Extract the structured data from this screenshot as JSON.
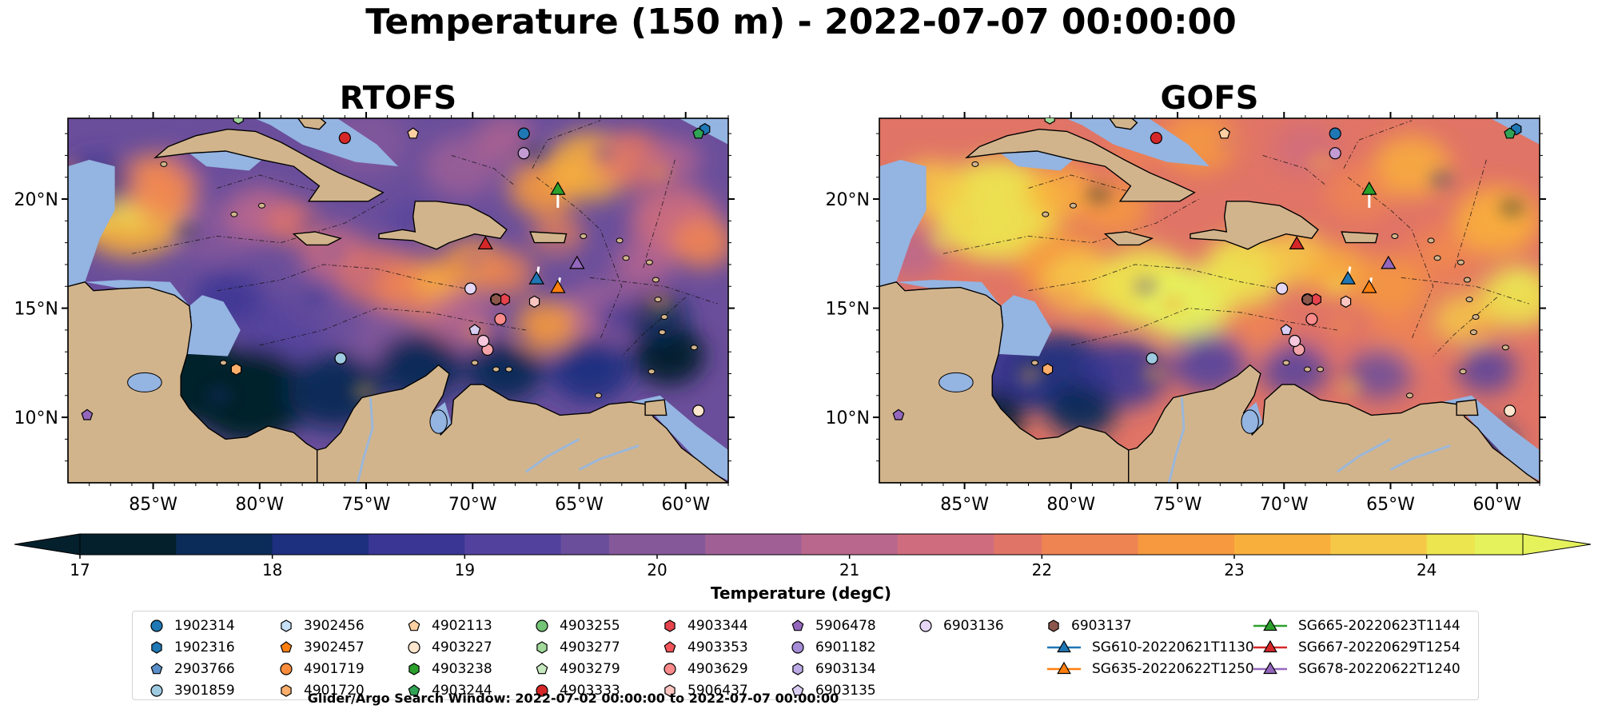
{
  "figure": {
    "title": "Temperature (150 m) - 2022-07-07 00:00:00",
    "footer": "Glider/Argo Search Window: 2022-07-02 00:00:00 to 2022-07-07 00:00:00"
  },
  "maps": [
    {
      "title": "RTOFS",
      "field_character": "mostly 19-23 degC, warm pool off Honduras, cold southern band"
    },
    {
      "title": "GOFS",
      "field_character": "warmer, 22-24+ degC across central basin, cold southern band"
    }
  ],
  "axes": {
    "x_tick_labels": [
      "85°W",
      "80°W",
      "75°W",
      "70°W",
      "65°W",
      "60°W"
    ],
    "x_ticks_lon": [
      -85,
      -80,
      -75,
      -70,
      -65,
      -60
    ],
    "y_tick_labels": [
      "10°N",
      "15°N",
      "20°N"
    ],
    "y_ticks_lat": [
      10,
      15,
      20
    ],
    "lon_range": [
      -89,
      -58
    ],
    "lat_range": [
      7,
      23.7
    ]
  },
  "colorbar": {
    "label": "Temperature (degC)",
    "tick_labels": [
      "17",
      "18",
      "19",
      "20",
      "21",
      "22",
      "23",
      "24"
    ],
    "range": [
      17,
      24.5
    ],
    "step": 0.25,
    "extend": "both",
    "colormap": "thermal",
    "colors": [
      "#04202c",
      "#0b2c59",
      "#1d2f7f",
      "#3a3693",
      "#53429d",
      "#6a4e9b",
      "#85589a",
      "#a06096",
      "#b9678d",
      "#cf6d7e",
      "#e07466",
      "#ef8453",
      "#f6993f",
      "#f9af3c",
      "#f5c848",
      "#ede550",
      "#e6f25c"
    ]
  },
  "map_colors": {
    "land": "#d2b48c",
    "shelf_water": "#94b4e1",
    "coastline": "#000000"
  },
  "floats": [
    {
      "id": "1902314",
      "marker": "circle",
      "color": "#1f77b4",
      "lon": -67.6,
      "lat": 23.0
    },
    {
      "id": "1902316",
      "marker": "hexagon",
      "color": "#1f77b4",
      "lon": -59.1,
      "lat": 23.2
    },
    {
      "id": "2903766",
      "marker": "pentagon",
      "color": "#5a8fc9",
      "lon": -98,
      "lat": -99
    },
    {
      "id": "3901859",
      "marker": "circle",
      "color": "#9ecae1",
      "lon": -76.2,
      "lat": 12.7
    },
    {
      "id": "3902456",
      "marker": "hexagon",
      "color": "#c6e0f7",
      "lon": -98,
      "lat": -99
    },
    {
      "id": "3902457",
      "marker": "pentagon",
      "color": "#ff7f0e",
      "lon": -98,
      "lat": -99
    },
    {
      "id": "4901719",
      "marker": "circle",
      "color": "#fd8d3c",
      "lon": -68.9,
      "lat": 15.4
    },
    {
      "id": "4901720",
      "marker": "hexagon",
      "color": "#fdae6b",
      "lon": -81.1,
      "lat": 12.2
    },
    {
      "id": "4902113",
      "marker": "pentagon",
      "color": "#fdd0a2",
      "lon": -72.8,
      "lat": 23.0
    },
    {
      "id": "4903227",
      "marker": "circle",
      "color": "#fee6ce",
      "lon": -59.4,
      "lat": 10.3
    },
    {
      "id": "4903238",
      "marker": "hexagon",
      "color": "#2ca02c",
      "lon": -98,
      "lat": -99
    },
    {
      "id": "4903244",
      "marker": "pentagon",
      "color": "#31a354",
      "lon": -59.4,
      "lat": 23.0
    },
    {
      "id": "4903255",
      "marker": "circle",
      "color": "#74c476",
      "lon": -98,
      "lat": -99
    },
    {
      "id": "4903277",
      "marker": "hexagon",
      "color": "#a1d99b",
      "lon": -81.0,
      "lat": 23.7
    },
    {
      "id": "4903279",
      "marker": "pentagon",
      "color": "#c7e9c0",
      "lon": -98,
      "lat": -99
    },
    {
      "id": "4903333",
      "marker": "circle",
      "color": "#d62728",
      "lon": -76.0,
      "lat": 22.8
    },
    {
      "id": "4903344",
      "marker": "hexagon",
      "color": "#e6434d",
      "lon": -68.5,
      "lat": 15.4
    },
    {
      "id": "4903353",
      "marker": "pentagon",
      "color": "#f25459",
      "lon": -98,
      "lat": -99
    },
    {
      "id": "4903629",
      "marker": "circle",
      "color": "#fb8a8a",
      "lon": -68.7,
      "lat": 14.5
    },
    {
      "id": "5906437",
      "marker": "hexagon",
      "color": "#fcc5c0",
      "lon": -67.1,
      "lat": 15.3
    },
    {
      "id": "5906478",
      "marker": "pentagon",
      "color": "#9467bd",
      "lon": -88.1,
      "lat": 10.1
    },
    {
      "id": "6901182",
      "marker": "circle",
      "color": "#a68cd6",
      "lon": -98,
      "lat": -99
    },
    {
      "id": "6903134",
      "marker": "hexagon",
      "color": "#bcaae6",
      "lon": -98,
      "lat": -99
    },
    {
      "id": "6903135",
      "marker": "pentagon",
      "color": "#d9cdf2",
      "lon": -69.9,
      "lat": 14.0
    },
    {
      "id": "6903136",
      "marker": "circle",
      "color": "#e5d6f5",
      "lon": -70.1,
      "lat": 15.9
    },
    {
      "id": "6903137",
      "marker": "hexagon",
      "color": "#8c564b",
      "lon": -68.9,
      "lat": 15.4
    }
  ],
  "extra_markers": [
    {
      "marker": "circle",
      "color": "#c39bd3",
      "lon": -67.6,
      "lat": 22.1
    },
    {
      "marker": "circle",
      "color": "#f4a3a8",
      "lon": -69.3,
      "lat": 13.1
    },
    {
      "marker": "circle",
      "color": "#f6c7dd",
      "lon": -69.5,
      "lat": 13.5
    }
  ],
  "gliders": [
    {
      "id": "SG610-20220621T1130",
      "color": "#1f77b4",
      "lon": -67.0,
      "lat": 16.3,
      "track": [
        [
          -67.0,
          16.3
        ],
        [
          -66.9,
          16.9
        ]
      ]
    },
    {
      "id": "SG635-20220622T1250",
      "color": "#ff7f0e",
      "lon": -66.0,
      "lat": 15.9,
      "track": [
        [
          -66.0,
          15.9
        ],
        [
          -65.9,
          16.4
        ]
      ]
    },
    {
      "id": "SG665-20220623T1144",
      "color": "#2ca02c",
      "lon": -66.0,
      "lat": 20.4,
      "track": [
        [
          -66.0,
          20.4
        ],
        [
          -66.0,
          19.6
        ]
      ]
    },
    {
      "id": "SG667-20220629T1254",
      "color": "#d62728",
      "lon": -69.4,
      "lat": 17.9,
      "track": [
        [
          -69.4,
          17.9
        ],
        [
          -69.3,
          18.1
        ]
      ]
    },
    {
      "id": "SG678-20220622T1240",
      "color": "#9467bd",
      "lon": -65.1,
      "lat": 17.0,
      "track": [
        [
          -65.1,
          17.0
        ],
        [
          -65.1,
          17.2
        ]
      ]
    }
  ]
}
